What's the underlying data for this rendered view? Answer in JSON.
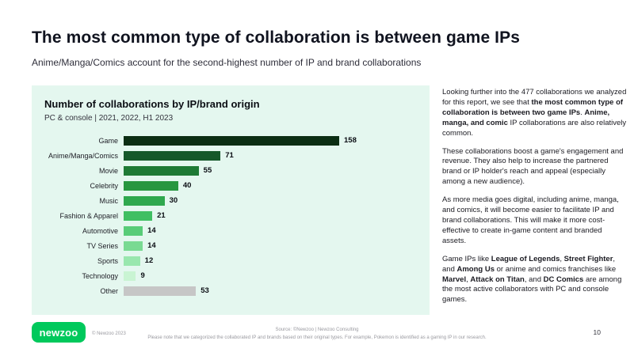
{
  "slide": {
    "title": "The most common type of collaboration is between game IPs",
    "subtitle": "Anime/Manga/Comics account for the second-highest number of IP and brand collaborations",
    "page_number": "10"
  },
  "chart_data": {
    "type": "bar",
    "orientation": "horizontal",
    "title": "Number of collaborations by IP/brand origin",
    "subtitle": "PC & console | 2021, 2022, H1 2023",
    "categories": [
      "Game",
      "Anime/Manga/Comics",
      "Movie",
      "Celebrity",
      "Music",
      "Fashion & Apparel",
      "Automotive",
      "TV Series",
      "Sports",
      "Technology",
      "Other"
    ],
    "values": [
      158,
      71,
      55,
      40,
      30,
      21,
      14,
      14,
      12,
      9,
      53
    ],
    "bar_colors": [
      "#0b2e13",
      "#15582a",
      "#1e7a35",
      "#27963f",
      "#2fa84e",
      "#3fbf62",
      "#58cc78",
      "#79da92",
      "#99e7ae",
      "#c9f4d3",
      "#c6c6c6"
    ],
    "xlim": [
      0,
      170
    ],
    "value_labels": true,
    "legend": false,
    "grid": false,
    "panel_bg": "#e4f7ef"
  },
  "commentary": {
    "paragraphs": [
      [
        {
          "t": "Looking further into the 477 collaborations we analyzed for this report, we see that "
        },
        {
          "t": "the most common type of collaboration is between two game IPs",
          "b": true
        },
        {
          "t": ". "
        },
        {
          "t": "Anime, manga, and comic",
          "b": true
        },
        {
          "t": " IP collaborations are also relatively common."
        }
      ],
      [
        {
          "t": "These collaborations boost a game's engagement and revenue. They also help to increase the partnered brand or IP holder's reach and appeal (especially among a new audience)."
        }
      ],
      [
        {
          "t": "As more media goes digital, including anime, manga, and comics, it will become easier to facilitate IP and brand collaborations. This will make it more cost-effective to create in-game content and branded assets."
        }
      ],
      [
        {
          "t": "Game IPs like "
        },
        {
          "t": "League of Legends",
          "b": true
        },
        {
          "t": ", "
        },
        {
          "t": "Street Fighter",
          "b": true
        },
        {
          "t": ", and "
        },
        {
          "t": "Among Us",
          "b": true
        },
        {
          "t": " or anime and comics franchises like "
        },
        {
          "t": "Marvel",
          "b": true
        },
        {
          "t": ", "
        },
        {
          "t": "Attack on Titan",
          "b": true
        },
        {
          "t": ", and "
        },
        {
          "t": "DC Comics",
          "b": true
        },
        {
          "t": " are among the most active collaborators with PC and console games."
        }
      ]
    ]
  },
  "footer": {
    "logo_text": "newzoo",
    "copyright": "© Newzoo 2023",
    "source_line1": "Source: ©Newzoo | Newzoo Consulting",
    "source_line2": "Please note that we categorized the collaborated IP and brands based on their original types. For example, Pokemon is identified as a gaming IP in our research.",
    "brand_green": "#00c95c"
  }
}
